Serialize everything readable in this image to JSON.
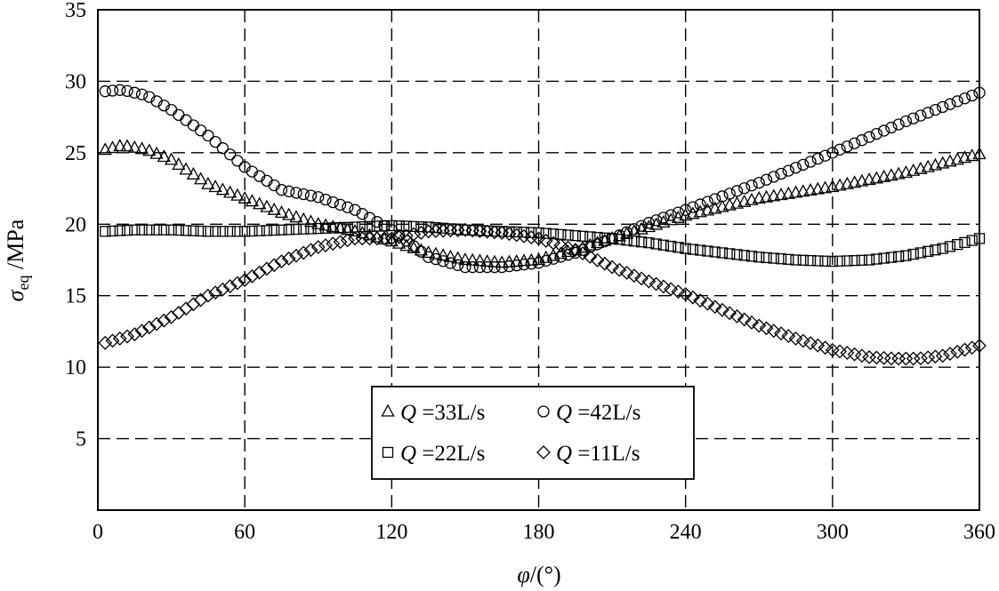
{
  "chart_data": {
    "type": "scatter",
    "xlabel_symbol": "φ",
    "xlabel_unit": "/(°)",
    "ylabel_symbol": "σ",
    "ylabel_sub": "eq",
    "ylabel_unit": " /MPa",
    "xlim": [
      0,
      360
    ],
    "ylim": [
      0,
      35
    ],
    "xticks": [
      0,
      60,
      120,
      180,
      240,
      300,
      360
    ],
    "yticks": [
      5,
      10,
      15,
      20,
      25,
      30,
      35
    ],
    "grid": true,
    "legend_position": "bottom-center",
    "series": [
      {
        "name": "Q =33L/s",
        "legend_q": "Q",
        "legend_rest": " =33L/s",
        "marker": "triangle",
        "x": [
          3,
          10,
          20,
          30,
          45,
          60,
          75,
          90,
          105,
          120,
          135,
          150,
          165,
          180,
          195,
          210,
          225,
          240,
          270,
          300,
          330,
          360
        ],
        "y": [
          25.2,
          25.5,
          25.2,
          24.5,
          22.8,
          21.8,
          20.8,
          20.0,
          19.5,
          18.8,
          18.0,
          17.5,
          17.3,
          17.5,
          18.2,
          19.0,
          19.8,
          20.6,
          21.8,
          22.6,
          23.6,
          24.9
        ]
      },
      {
        "name": "Q =42L/s",
        "legend_q": "Q",
        "legend_rest": " =42L/s",
        "marker": "circle",
        "x": [
          3,
          10,
          20,
          30,
          45,
          60,
          75,
          90,
          105,
          120,
          135,
          150,
          165,
          180,
          195,
          210,
          225,
          240,
          270,
          300,
          330,
          360
        ],
        "y": [
          29.3,
          29.4,
          29.0,
          28.0,
          26.2,
          24.0,
          22.4,
          21.9,
          21.0,
          19.6,
          17.7,
          17.0,
          17.0,
          17.3,
          18.0,
          19.0,
          20.1,
          21.0,
          22.9,
          25.0,
          27.2,
          29.2
        ]
      },
      {
        "name": "Q =22L/s",
        "legend_q": "Q",
        "legend_rest": " =22L/s",
        "marker": "square",
        "x": [
          3,
          15,
          30,
          45,
          60,
          75,
          90,
          105,
          120,
          135,
          150,
          165,
          180,
          195,
          210,
          225,
          240,
          255,
          270,
          285,
          300,
          315,
          330,
          345,
          360
        ],
        "y": [
          19.5,
          19.6,
          19.6,
          19.5,
          19.5,
          19.6,
          19.7,
          19.8,
          19.9,
          19.8,
          19.6,
          19.5,
          19.4,
          19.2,
          19.0,
          18.7,
          18.3,
          18.0,
          17.7,
          17.5,
          17.4,
          17.5,
          17.8,
          18.3,
          19.0
        ]
      },
      {
        "name": "Q =11L/s",
        "legend_q": "Q",
        "legend_rest": " =11L/s",
        "marker": "diamond",
        "x": [
          3,
          15,
          30,
          45,
          60,
          75,
          90,
          105,
          120,
          135,
          150,
          165,
          180,
          195,
          210,
          225,
          240,
          255,
          270,
          285,
          300,
          315,
          325,
          335,
          345,
          360
        ],
        "y": [
          11.7,
          12.3,
          13.5,
          15.0,
          16.1,
          17.4,
          18.4,
          19.0,
          19.0,
          19.5,
          19.6,
          19.4,
          19.0,
          18.2,
          17.0,
          16.0,
          15.1,
          14.0,
          12.9,
          12.0,
          11.2,
          10.7,
          10.6,
          10.6,
          10.8,
          11.5
        ]
      }
    ]
  }
}
